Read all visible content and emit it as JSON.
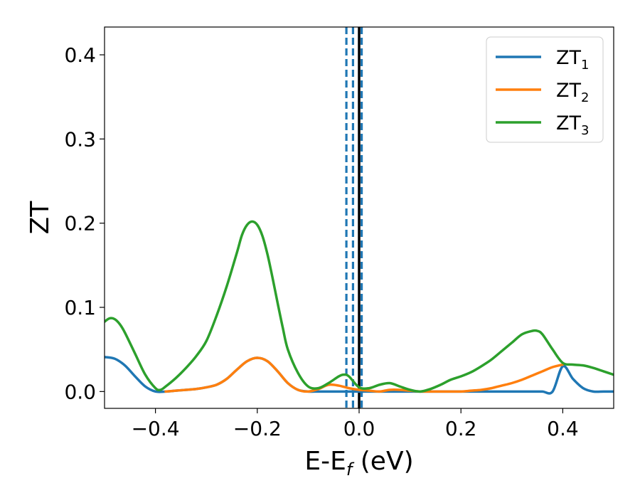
{
  "chart_data": {
    "type": "line",
    "xlabel_main": "E-E",
    "xlabel_sub": "f",
    "xlabel_unit": " (eV)",
    "ylabel": "ZT",
    "xlim": [
      -0.5,
      0.5
    ],
    "ylim": [
      -0.02,
      0.433
    ],
    "x_ticks": [
      -0.4,
      -0.2,
      0.0,
      0.2,
      0.4
    ],
    "x_tick_labels": [
      "−0.4",
      "−0.2",
      "0.0",
      "0.2",
      "0.4"
    ],
    "y_ticks": [
      0.0,
      0.1,
      0.2,
      0.3,
      0.4
    ],
    "y_tick_labels": [
      "0.0",
      "0.1",
      "0.2",
      "0.3",
      "0.4"
    ],
    "grid": false,
    "legend_position": "top-right",
    "series": [
      {
        "name": "ZT",
        "subscript": "1",
        "color": "#1f77b4",
        "x": [
          -0.5,
          -0.48,
          -0.46,
          -0.44,
          -0.42,
          -0.4,
          -0.38,
          -0.36,
          -0.34,
          -0.32,
          -0.3,
          -0.28,
          -0.26,
          -0.24,
          -0.22,
          -0.2,
          -0.18,
          -0.16,
          -0.14,
          -0.12,
          -0.1,
          -0.08,
          -0.06,
          -0.04,
          -0.02,
          0.0,
          0.02,
          0.04,
          0.06,
          0.08,
          0.1,
          0.12,
          0.14,
          0.16,
          0.18,
          0.2,
          0.22,
          0.24,
          0.26,
          0.28,
          0.3,
          0.32,
          0.34,
          0.36,
          0.38,
          0.4,
          0.42,
          0.44,
          0.46,
          0.48,
          0.5
        ],
        "y": [
          0.041,
          0.039,
          0.031,
          0.018,
          0.006,
          0.0,
          0.0,
          0.001,
          0.002,
          0.003,
          0.005,
          0.008,
          0.015,
          0.026,
          0.036,
          0.04,
          0.036,
          0.024,
          0.01,
          0.002,
          0.0,
          0.0,
          0.0,
          0.0,
          0.0,
          0.0,
          0.0,
          0.0,
          0.0,
          0.0,
          0.0,
          0.0,
          0.0,
          0.0,
          0.0,
          0.0,
          0.0,
          0.0,
          0.0,
          0.0,
          0.0,
          0.0,
          0.0,
          0.0,
          0.0,
          0.03,
          0.015,
          0.004,
          0.0,
          0.0,
          0.0
        ]
      },
      {
        "name": "ZT",
        "subscript": "2",
        "color": "#ff7f0e",
        "x": [
          -0.38,
          -0.36,
          -0.34,
          -0.32,
          -0.3,
          -0.28,
          -0.26,
          -0.24,
          -0.22,
          -0.2,
          -0.18,
          -0.16,
          -0.14,
          -0.12,
          -0.1,
          -0.08,
          -0.06,
          -0.04,
          -0.02,
          0.0,
          0.02,
          0.04,
          0.06,
          0.08,
          0.1,
          0.12,
          0.14,
          0.16,
          0.18,
          0.2,
          0.22,
          0.24,
          0.26,
          0.28,
          0.3,
          0.32,
          0.34,
          0.36,
          0.38,
          0.4
        ],
        "y": [
          0.0,
          0.001,
          0.002,
          0.003,
          0.005,
          0.008,
          0.015,
          0.026,
          0.036,
          0.04,
          0.036,
          0.024,
          0.01,
          0.002,
          0.0,
          0.003,
          0.008,
          0.007,
          0.004,
          0.002,
          0.001,
          0.0,
          0.002,
          0.002,
          0.001,
          0.0,
          0.0,
          0.0,
          0.0,
          0.0,
          0.001,
          0.002,
          0.004,
          0.007,
          0.01,
          0.014,
          0.019,
          0.024,
          0.029,
          0.032
        ]
      },
      {
        "name": "ZT",
        "subscript": "3",
        "color": "#2ca02c",
        "x": [
          -0.5,
          -0.49,
          -0.48,
          -0.47,
          -0.46,
          -0.44,
          -0.42,
          -0.4,
          -0.39,
          -0.38,
          -0.36,
          -0.34,
          -0.32,
          -0.3,
          -0.28,
          -0.26,
          -0.24,
          -0.23,
          -0.22,
          -0.21,
          -0.2,
          -0.19,
          -0.18,
          -0.17,
          -0.16,
          -0.15,
          -0.14,
          -0.12,
          -0.1,
          -0.08,
          -0.06,
          -0.04,
          -0.03,
          -0.02,
          0.0,
          0.02,
          0.04,
          0.06,
          0.08,
          0.1,
          0.12,
          0.14,
          0.16,
          0.18,
          0.2,
          0.22,
          0.24,
          0.26,
          0.28,
          0.3,
          0.32,
          0.34,
          0.35,
          0.36,
          0.38,
          0.4,
          0.42,
          0.44,
          0.46,
          0.48,
          0.5
        ],
        "y": [
          0.083,
          0.087,
          0.086,
          0.08,
          0.07,
          0.045,
          0.02,
          0.004,
          0.002,
          0.006,
          0.016,
          0.028,
          0.042,
          0.06,
          0.09,
          0.125,
          0.165,
          0.186,
          0.198,
          0.202,
          0.198,
          0.185,
          0.163,
          0.135,
          0.105,
          0.076,
          0.05,
          0.022,
          0.006,
          0.004,
          0.01,
          0.018,
          0.02,
          0.018,
          0.005,
          0.004,
          0.008,
          0.01,
          0.006,
          0.002,
          0.0,
          0.003,
          0.008,
          0.014,
          0.018,
          0.023,
          0.03,
          0.038,
          0.048,
          0.058,
          0.068,
          0.072,
          0.072,
          0.068,
          0.05,
          0.034,
          0.032,
          0.031,
          0.028,
          0.024,
          0.02
        ]
      }
    ],
    "vertical_lines": [
      {
        "x": -0.025,
        "style": "dashed",
        "color": "#1f77b4"
      },
      {
        "x": -0.012,
        "style": "dashed",
        "color": "#1f77b4"
      },
      {
        "x": 0.005,
        "style": "dashed",
        "color": "#1f77b4"
      },
      {
        "x": 0.0,
        "style": "solid",
        "color": "#000000"
      }
    ]
  }
}
